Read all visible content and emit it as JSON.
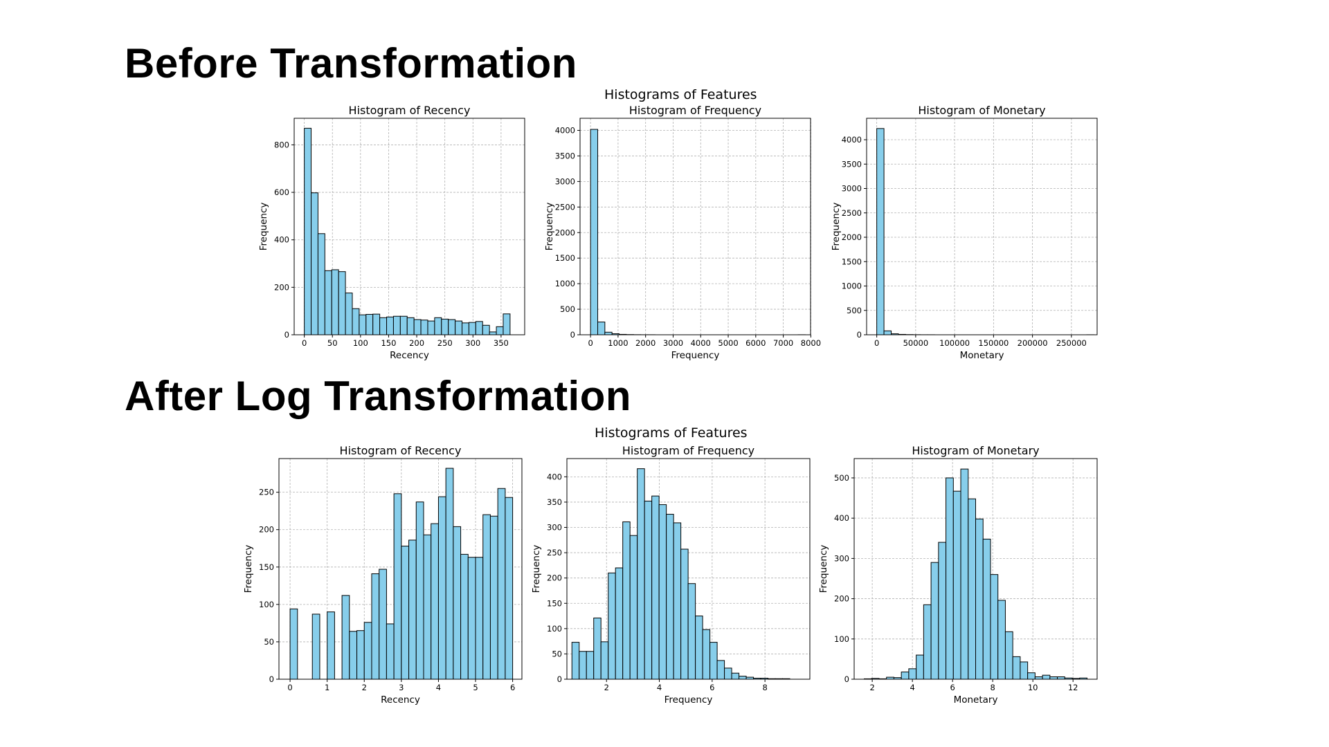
{
  "sections": {
    "before_title": "Before Transformation",
    "after_title": "After Log Transformation",
    "before_suptitle": "Histograms of Features",
    "after_suptitle": "Histograms of Features"
  },
  "colors": {
    "bar_fill": "#87CEEB",
    "bar_edge": "#000000",
    "grid": "#b0b0b0"
  },
  "chart_data": [
    {
      "id": "before-recency",
      "type": "bar",
      "section": "Before Transformation",
      "title": "Histogram of Recency",
      "xlabel": "Recency",
      "ylabel": "Frequency",
      "xlim": [
        -18,
        392
      ],
      "ylim": [
        0,
        912
      ],
      "xticks": [
        0,
        50,
        100,
        150,
        200,
        250,
        300,
        350
      ],
      "yticks": [
        0,
        200,
        400,
        600,
        800
      ],
      "bin_start": 0,
      "bin_width": 12.2,
      "grid": true,
      "values": [
        870,
        598,
        426,
        270,
        274,
        266,
        176,
        110,
        84,
        86,
        87,
        72,
        75,
        78,
        78,
        72,
        64,
        62,
        58,
        72,
        66,
        64,
        58,
        50,
        52,
        56,
        40,
        12,
        34,
        88
      ]
    },
    {
      "id": "before-frequency",
      "type": "bar",
      "section": "Before Transformation",
      "title": "Histogram of Frequency",
      "xlabel": "Frequency",
      "ylabel": "Frequency",
      "xlim": [
        -380,
        7990
      ],
      "ylim": [
        0,
        4237
      ],
      "xticks": [
        0,
        1000,
        2000,
        3000,
        4000,
        5000,
        6000,
        7000,
        8000
      ],
      "yticks": [
        0,
        500,
        1000,
        1500,
        2000,
        2500,
        3000,
        3500,
        4000
      ],
      "bin_start": 1,
      "bin_width": 260,
      "grid": true,
      "values": [
        4020,
        250,
        50,
        20,
        8,
        4,
        2,
        1,
        1,
        0,
        0,
        0,
        0,
        0,
        0,
        0,
        0,
        0,
        0,
        0,
        0,
        0,
        0,
        0,
        0,
        0,
        0,
        0,
        0,
        1
      ]
    },
    {
      "id": "before-monetary",
      "type": "bar",
      "section": "Before Transformation",
      "title": "Histogram of Monetary",
      "xlabel": "Monetary",
      "ylabel": "Frequency",
      "xlim": [
        -13000,
        283000
      ],
      "ylim": [
        0,
        4440
      ],
      "xticks": [
        0,
        50000,
        100000,
        150000,
        200000,
        250000
      ],
      "yticks": [
        0,
        500,
        1000,
        1500,
        2000,
        2500,
        3000,
        3500,
        4000
      ],
      "bin_start": 0,
      "bin_width": 9300,
      "grid": true,
      "values": [
        4230,
        80,
        20,
        8,
        4,
        2,
        1,
        1,
        0,
        0,
        0,
        0,
        0,
        0,
        0,
        0,
        0,
        0,
        0,
        0,
        0,
        0,
        0,
        0,
        0,
        0,
        0,
        0,
        0,
        1
      ]
    },
    {
      "id": "after-recency",
      "type": "bar",
      "section": "After Log Transformation",
      "title": "Histogram of Recency",
      "xlabel": "Recency",
      "ylabel": "Frequency",
      "xlim": [
        -0.3,
        6.25
      ],
      "ylim": [
        0,
        295
      ],
      "xticks": [
        0,
        1,
        2,
        3,
        4,
        5,
        6
      ],
      "yticks": [
        0,
        50,
        100,
        150,
        200,
        250
      ],
      "bin_start": 0,
      "bin_width": 0.2,
      "grid": true,
      "values": [
        94,
        0,
        0,
        87,
        0,
        90,
        0,
        112,
        64,
        65,
        76,
        141,
        147,
        74,
        248,
        178,
        186,
        237,
        193,
        208,
        244,
        282,
        204,
        167,
        163,
        163,
        220,
        218,
        255,
        243
      ]
    },
    {
      "id": "after-frequency",
      "type": "bar",
      "section": "After Log Transformation",
      "title": "Histogram of Frequency",
      "xlabel": "Frequency",
      "ylabel": "Frequency",
      "xlim": [
        0.5,
        9.7
      ],
      "ylim": [
        0,
        436
      ],
      "xticks": [
        2,
        4,
        6,
        8
      ],
      "yticks": [
        0,
        50,
        100,
        150,
        200,
        250,
        300,
        350,
        400
      ],
      "bin_start": 0.69,
      "bin_width": 0.275,
      "grid": true,
      "values": [
        73,
        55,
        55,
        121,
        74,
        210,
        220,
        311,
        284,
        416,
        352,
        362,
        345,
        326,
        309,
        257,
        189,
        125,
        98,
        73,
        37,
        22,
        12,
        6,
        4,
        2,
        2,
        1,
        1,
        1
      ]
    },
    {
      "id": "after-monetary",
      "type": "bar",
      "section": "After Log Transformation",
      "title": "Histogram of Monetary",
      "xlabel": "Monetary",
      "ylabel": "Frequency",
      "xlim": [
        1.1,
        13.2
      ],
      "ylim": [
        0,
        548
      ],
      "xticks": [
        2,
        4,
        6,
        8,
        10,
        12
      ],
      "yticks": [
        0,
        100,
        200,
        300,
        400,
        500
      ],
      "bin_start": 1.6,
      "bin_width": 0.37,
      "grid": true,
      "values": [
        1,
        2,
        1,
        5,
        4,
        18,
        26,
        60,
        185,
        290,
        340,
        500,
        467,
        522,
        448,
        398,
        348,
        260,
        196,
        118,
        56,
        43,
        16,
        6,
        10,
        6,
        6,
        3,
        2,
        3
      ]
    }
  ]
}
